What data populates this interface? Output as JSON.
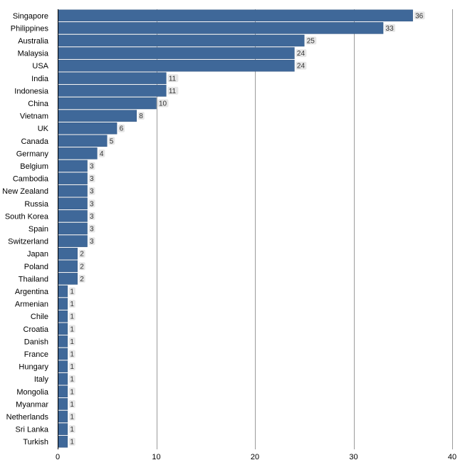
{
  "chart_data": {
    "type": "bar",
    "orientation": "horizontal",
    "title": "",
    "xlabel": "",
    "ylabel": "",
    "categories": [
      "Singapore",
      "Philippines",
      "Australia",
      "Malaysia",
      "USA",
      "India",
      "Indonesia",
      "China",
      "Vietnam",
      "UK",
      "Canada",
      "Germany",
      "Belgium",
      "Cambodia",
      "New Zealand",
      "Russia",
      "South Korea",
      "Spain",
      "Switzerland",
      "Japan",
      "Poland",
      "Thailand",
      "Argentina",
      "Armenian",
      "Chile",
      "Croatia",
      "Danish",
      "France",
      "Hungary",
      "Italy",
      "Mongolia",
      "Myanmar",
      "Netherlands",
      "Sri Lanka",
      "Turkish"
    ],
    "values": [
      36,
      33,
      25,
      24,
      24,
      11,
      11,
      10,
      8,
      6,
      5,
      4,
      3,
      3,
      3,
      3,
      3,
      3,
      3,
      2,
      2,
      2,
      1,
      1,
      1,
      1,
      1,
      1,
      1,
      1,
      1,
      1,
      1,
      1,
      1
    ],
    "xlim": [
      0,
      40
    ],
    "xticks": [
      0,
      10,
      20,
      30,
      40
    ],
    "grid": true,
    "legend": "none",
    "data_labels": true,
    "colors": {
      "bar": "#3f6899",
      "bar_edge": "#2f5580",
      "grid": "#9a9a9a"
    }
  }
}
